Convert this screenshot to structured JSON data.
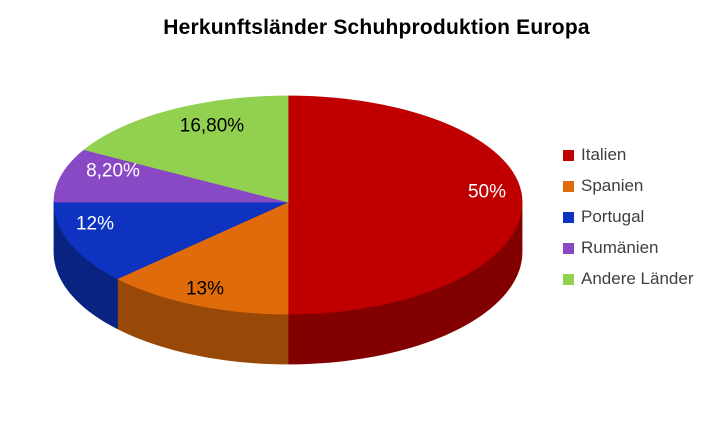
{
  "chart_data": {
    "type": "pie",
    "is_3d": true,
    "title": "Herkunftsländer Schuhproduktion Europa",
    "categories": [
      "Italien",
      "Spanien",
      "Portugal",
      "Rumänien",
      "Andere Länder"
    ],
    "values": [
      50,
      13,
      12,
      8.2,
      16.8
    ],
    "data_labels": [
      "50%",
      "13%",
      "12%",
      "8,20%",
      "16,80%"
    ],
    "colors": [
      "#C00000",
      "#E06B0A",
      "#0D33C0",
      "#8A49C4",
      "#92D050"
    ],
    "data_label_colors": [
      "#FFFFFF",
      "#000000",
      "#FFFFFF",
      "#FFFFFF",
      "#000000"
    ],
    "legend_position": "right",
    "start_angle_deg": 0,
    "direction": "clockwise",
    "unit": "%"
  }
}
